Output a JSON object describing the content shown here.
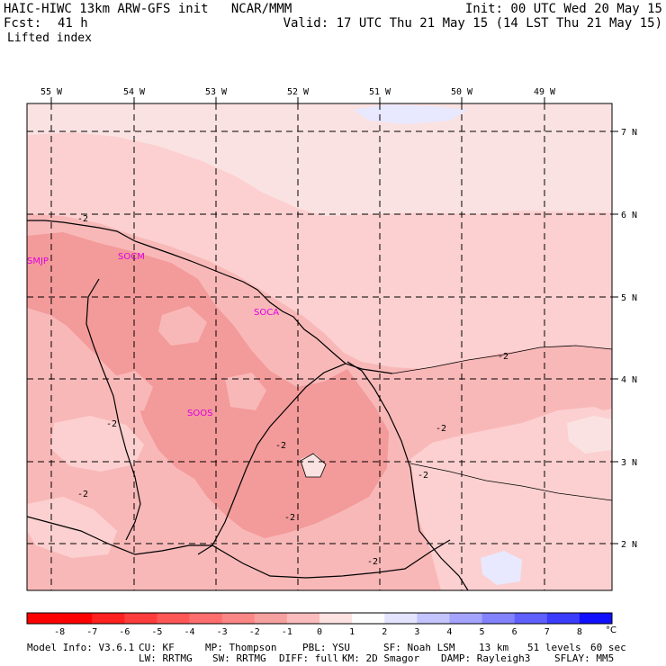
{
  "header": {
    "title": "HAIC-HIWC 13km ARW-GFS init   NCAR/MMM",
    "init": "Init: 00 UTC Wed 20 May 15",
    "fcst_label": "Fcst:",
    "fcst_value": "41 h",
    "valid": "Valid: 17 UTC Thu 21 May 15 (14 LST Thu 21 May 15)",
    "field": "Lifted index"
  },
  "map": {
    "lon_labels": [
      "55 W",
      "54 W",
      "53 W",
      "52 W",
      "51 W",
      "50 W",
      "49 W"
    ],
    "lat_labels": [
      "7 N",
      "6 N",
      "5 N",
      "4 N",
      "3 N",
      "2 N"
    ],
    "stations": [
      "SMJP",
      "SOCM",
      "SOCA",
      "SOOS"
    ],
    "contour_label": "-2",
    "contour_label_count": 9,
    "colors": {
      "ocean_pale": "#fbe2e2",
      "level_m1": "#fcd0d0",
      "level_m2": "#f9b8b8",
      "level_m3": "#f39a9a",
      "blue_patch": "#e8e8ff",
      "station_text": "#e000e0"
    }
  },
  "colorbar": {
    "labels": [
      "-8",
      "-7",
      "-6",
      "-5",
      "-4",
      "-3",
      "-2",
      "-1",
      "0",
      "1",
      "2",
      "3",
      "4",
      "5",
      "6",
      "7",
      "8"
    ],
    "unit": "°C",
    "colors": [
      "#ff0000",
      "#ff2020",
      "#ff3c3c",
      "#ff5656",
      "#ff6e6e",
      "#fb8686",
      "#f7a0a0",
      "#fabcbc",
      "#fde2e2",
      "#fdfdfd",
      "#e4e4ff",
      "#c4c4ff",
      "#a4a4ff",
      "#8282ff",
      "#6060ff",
      "#3c3cff",
      "#1010ff"
    ]
  },
  "footer": {
    "line1": [
      "Model Info: V3.6.1",
      "CU: KF",
      "MP: Thompson",
      "PBL: YSU",
      "SF: Noah LSM",
      "13 km",
      "51 levels",
      "60 sec"
    ],
    "line2": [
      "LW: RRTMG",
      "SW: RRTMG",
      "DIFF: full",
      "KM: 2D Smagor",
      "DAMP: Rayleigh3",
      "SFLAY: MM5"
    ]
  }
}
